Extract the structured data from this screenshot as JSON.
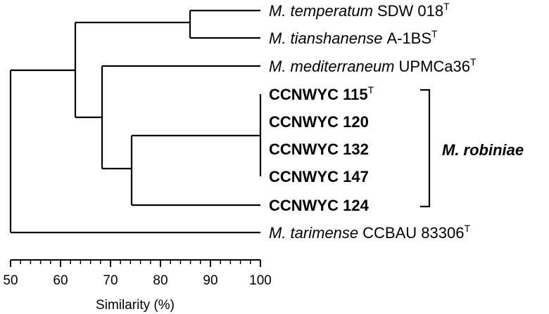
{
  "taxa": [
    {
      "id": "temperatum",
      "species": "M. temperatum",
      "strain": "SDW 018",
      "type_strain": "T"
    },
    {
      "id": "tianshanense",
      "species": "M. tianshanense",
      "strain": "A-1BS",
      "type_strain": "T"
    },
    {
      "id": "mediterraneum",
      "species": "M. mediterraneum",
      "strain": "UPMCa36",
      "type_strain": "T"
    },
    {
      "id": "c115",
      "species": "",
      "strain": "CCNWYC 115",
      "type_strain": "T"
    },
    {
      "id": "c120",
      "species": "",
      "strain": "CCNWYC 120",
      "type_strain": ""
    },
    {
      "id": "c132",
      "species": "",
      "strain": "CCNWYC 132",
      "type_strain": ""
    },
    {
      "id": "c147",
      "species": "",
      "strain": "CCNWYC 147",
      "type_strain": ""
    },
    {
      "id": "c124",
      "species": "",
      "strain": "CCNWYC 124",
      "type_strain": ""
    },
    {
      "id": "tarimense",
      "species": "M. tarimense",
      "strain": "CCBAU 83306",
      "type_strain": "T"
    }
  ],
  "group_label": "M. robiniae",
  "dendrogram_nodes": [
    {
      "name": "node-temperatum-tianshanense",
      "similarity": 86
    },
    {
      "name": "node-ccnwyc-cluster",
      "similarity": 100
    },
    {
      "name": "node-ccnwyc-124",
      "similarity": 74
    },
    {
      "name": "node-mediterraneum-ccnwyc",
      "similarity": 68
    },
    {
      "name": "node-upper",
      "similarity": 63
    },
    {
      "name": "node-root",
      "similarity": 50
    }
  ],
  "axis": {
    "label": "Similarity (%)",
    "ticks": [
      "50",
      "60",
      "70",
      "80",
      "90",
      "100"
    ],
    "range": [
      50,
      100
    ]
  }
}
